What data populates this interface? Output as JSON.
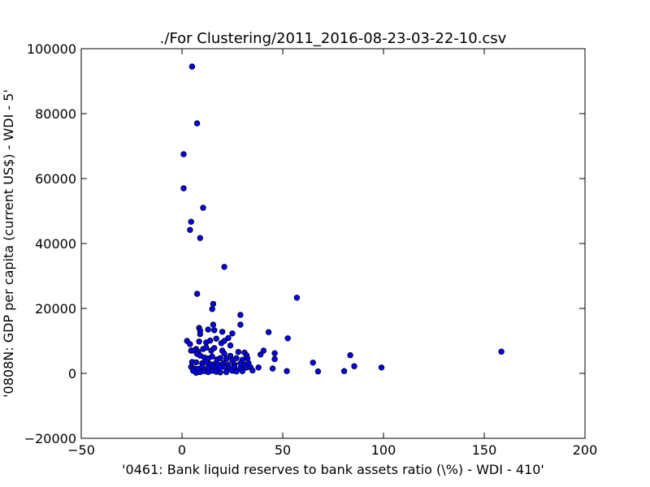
{
  "chart_data": {
    "type": "scatter",
    "title": "./For Clustering/2011_2016-08-23-03-22-10.csv",
    "xlabel": "'0461: Bank liquid reserves to bank assets ratio  (\\%) - WDI - 410'",
    "ylabel": "'0808N: GDP per capita  (current US$) - WDI - 5'",
    "xlim": [
      -50,
      200
    ],
    "ylim": [
      -20000,
      100000
    ],
    "xticks": [
      "−50",
      "0",
      "50",
      "100",
      "150",
      "200"
    ],
    "yticks": [
      "−20000",
      "0",
      "20000",
      "40000",
      "60000",
      "80000",
      "100000"
    ],
    "grid": false,
    "marker_color": "#0000ff",
    "points": [
      [
        5,
        94500
      ],
      [
        7.5,
        77000
      ],
      [
        0.8,
        67500
      ],
      [
        0.8,
        57000
      ],
      [
        10.5,
        51000
      ],
      [
        4.5,
        46700
      ],
      [
        4,
        44200
      ],
      [
        9,
        41700
      ],
      [
        21,
        32800
      ],
      [
        7.5,
        24500
      ],
      [
        57,
        23300
      ],
      [
        15.5,
        21400
      ],
      [
        15,
        19800
      ],
      [
        29,
        18000
      ],
      [
        15.5,
        15000
      ],
      [
        29,
        15000
      ],
      [
        8.5,
        14000
      ],
      [
        9,
        13200
      ],
      [
        9,
        12100
      ],
      [
        13,
        13500
      ],
      [
        16,
        13300
      ],
      [
        20,
        12800
      ],
      [
        25,
        12300
      ],
      [
        43,
        12700
      ],
      [
        52.5,
        10800
      ],
      [
        2.5,
        10000
      ],
      [
        4,
        9000
      ],
      [
        7,
        7500
      ],
      [
        8.5,
        9800
      ],
      [
        12,
        9500
      ],
      [
        14,
        10100
      ],
      [
        17,
        10700
      ],
      [
        19.5,
        9300
      ],
      [
        21,
        10000
      ],
      [
        23,
        10900
      ],
      [
        24,
        8600
      ],
      [
        4.5,
        7000
      ],
      [
        6,
        7000
      ],
      [
        8,
        6600
      ],
      [
        10.5,
        7500
      ],
      [
        12,
        7900
      ],
      [
        14.5,
        7000
      ],
      [
        16,
        7800
      ],
      [
        20,
        7000
      ],
      [
        21,
        6100
      ],
      [
        24,
        5400
      ],
      [
        28,
        6600
      ],
      [
        31,
        6400
      ],
      [
        32,
        5600
      ],
      [
        39,
        5800
      ],
      [
        40.5,
        7000
      ],
      [
        46,
        6200
      ],
      [
        83.5,
        5600
      ],
      [
        158.5,
        6700
      ],
      [
        7.5,
        6000
      ],
      [
        9,
        5500
      ],
      [
        11,
        4900
      ],
      [
        13,
        4600
      ],
      [
        15,
        5200
      ],
      [
        17.5,
        4300
      ],
      [
        19,
        4700
      ],
      [
        22,
        4500
      ],
      [
        25,
        4100
      ],
      [
        27,
        4700
      ],
      [
        30,
        4200
      ],
      [
        32.5,
        4600
      ],
      [
        46,
        4400
      ],
      [
        5,
        3500
      ],
      [
        7,
        3400
      ],
      [
        10,
        3100
      ],
      [
        12,
        3500
      ],
      [
        14,
        2900
      ],
      [
        16.5,
        3000
      ],
      [
        18,
        2700
      ],
      [
        20.5,
        3100
      ],
      [
        23,
        2700
      ],
      [
        26,
        2800
      ],
      [
        29,
        3100
      ],
      [
        31,
        2600
      ],
      [
        33,
        3200
      ],
      [
        65,
        3300
      ],
      [
        4.5,
        2000
      ],
      [
        6,
        1500
      ],
      [
        8,
        1400
      ],
      [
        10,
        2000
      ],
      [
        13,
        1800
      ],
      [
        15,
        2300
      ],
      [
        17,
        1500
      ],
      [
        19,
        1900
      ],
      [
        21,
        2000
      ],
      [
        23.5,
        1400
      ],
      [
        26,
        2000
      ],
      [
        29,
        1600
      ],
      [
        32,
        1800
      ],
      [
        34,
        1900
      ],
      [
        38,
        1800
      ],
      [
        45,
        1500
      ],
      [
        85.5,
        2200
      ],
      [
        99,
        1800
      ],
      [
        5.5,
        800
      ],
      [
        7,
        200
      ],
      [
        9,
        400
      ],
      [
        11,
        700
      ],
      [
        13,
        400
      ],
      [
        15,
        800
      ],
      [
        17,
        500
      ],
      [
        19,
        300
      ],
      [
        22,
        400
      ],
      [
        25,
        800
      ],
      [
        27,
        600
      ],
      [
        30,
        700
      ],
      [
        35,
        900
      ],
      [
        52,
        700
      ],
      [
        67.5,
        600
      ],
      [
        80.5,
        700
      ]
    ]
  }
}
